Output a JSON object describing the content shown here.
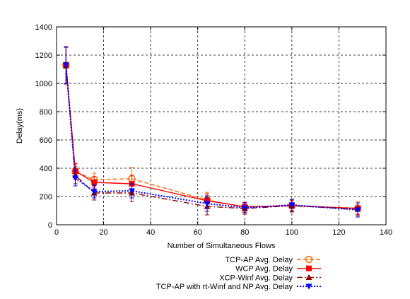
{
  "chart_data": {
    "type": "line",
    "xlabel": "Number of Simultaneous Flows",
    "ylabel": "Delay(ms)",
    "xlim": [
      0,
      140
    ],
    "ylim": [
      0,
      1400
    ],
    "xticks": [
      0,
      20,
      40,
      60,
      80,
      100,
      120,
      140
    ],
    "yticks": [
      0,
      200,
      400,
      600,
      800,
      1000,
      1200,
      1400
    ],
    "grid": true,
    "legend_position": "bottom-right, below plot",
    "x": [
      4,
      8,
      16,
      32,
      64,
      80,
      100,
      128
    ],
    "series": [
      {
        "name": "TCP-AP Avg. Delay",
        "color": "#ff6a00",
        "style": "dashed",
        "marker": "open-circle",
        "values": [
          1130,
          375,
          320,
          325,
          175,
          125,
          135,
          118
        ],
        "err": [
          130,
          55,
          45,
          80,
          55,
          35,
          40,
          45
        ]
      },
      {
        "name": "WCP Avg. Delay",
        "color": "#ff0000",
        "style": "solid",
        "marker": "filled-square",
        "values": [
          1130,
          380,
          300,
          290,
          170,
          128,
          135,
          115
        ],
        "err": [
          130,
          55,
          40,
          60,
          50,
          30,
          35,
          40
        ]
      },
      {
        "name": "XCP-Winf Avg. Delay",
        "color": "#8b0000",
        "style": "dashdot",
        "marker": "filled-triangle-up",
        "values": [
          1125,
          350,
          225,
          225,
          130,
          115,
          135,
          110
        ],
        "err": [
          130,
          60,
          50,
          60,
          60,
          40,
          45,
          45
        ]
      },
      {
        "name": "TCP-AP with rt-Winf and NP Avg. Delay",
        "color": "#0000ff",
        "style": "dotted",
        "marker": "filled-triangle-down",
        "values": [
          1130,
          330,
          235,
          240,
          150,
          120,
          140,
          105
        ],
        "err": [
          130,
          55,
          45,
          50,
          55,
          35,
          40,
          50
        ]
      }
    ]
  }
}
